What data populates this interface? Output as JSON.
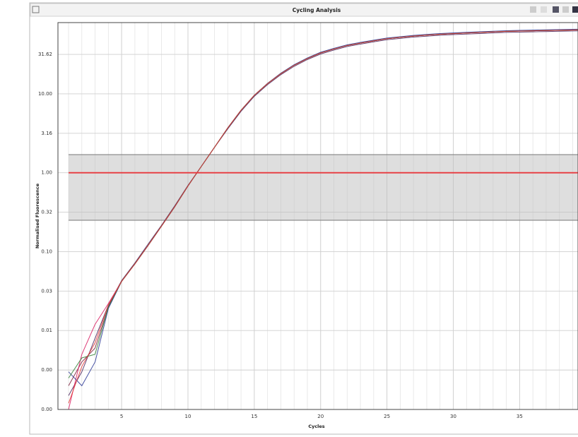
{
  "chart_data": {
    "type": "line",
    "title": "Cycling Analysis",
    "x_label": "Cycles",
    "y_label": "Normalised Fluorescence",
    "log_y": true,
    "grid": true,
    "x_minor_grid": true,
    "threshold": 1,
    "threshold_color": "#e8383d",
    "threshold_band": [
      0.25,
      1.7
    ],
    "xlim": [
      0.2,
      39.4
    ],
    "ylim": [
      0.001,
      80
    ],
    "xticks": [
      5,
      10,
      15,
      20,
      25,
      30,
      35
    ],
    "yticks": [
      31.62,
      {
        "value": 10,
        "label": "10.00"
      },
      {
        "value": 3.162,
        "label": "3.16"
      },
      {
        "value": 1,
        "label": "1.00"
      },
      {
        "value": 0.3162,
        "label": "0.32"
      },
      {
        "value": 0.1,
        "label": "0.10"
      },
      {
        "value": 0.03162,
        "label": "0.03"
      },
      {
        "value": 0.01,
        "label": "0.01"
      },
      {
        "value": 0.003162,
        "label": "0.00"
      },
      {
        "value": 0.001,
        "label": "0.00"
      }
    ],
    "x": [
      1,
      2,
      3,
      4,
      5,
      6,
      7,
      8,
      9,
      10,
      11,
      12,
      13,
      14,
      15,
      16,
      17,
      18,
      19,
      20,
      21,
      22,
      23,
      24,
      25,
      26,
      27,
      28,
      29,
      30,
      31,
      32,
      33,
      34,
      35,
      36,
      37,
      38,
      39,
      40
    ],
    "series": [
      {
        "color": "#7b1f3a",
        "values": [
          0.002,
          0.004,
          0.006,
          0.02,
          0.042,
          0.07,
          0.12,
          0.21,
          0.37,
          0.68,
          1.2,
          2.1,
          3.7,
          6.2,
          9.6,
          13.5,
          18,
          23,
          28,
          33,
          37,
          41,
          44,
          47,
          50,
          52,
          54,
          55.5,
          57,
          58,
          59,
          60,
          61,
          62,
          62.5,
          63,
          63.5,
          64,
          64.5,
          65
        ]
      },
      {
        "color": "#4a235a",
        "values": [
          0.0015,
          0.003,
          0.008,
          0.021,
          0.043,
          0.072,
          0.125,
          0.215,
          0.38,
          0.69,
          1.2,
          2.1,
          3.6,
          6.0,
          9.3,
          13.1,
          17.5,
          22.3,
          27.2,
          32,
          35.9,
          39.8,
          42.7,
          45.6,
          48.5,
          50.4,
          52.4,
          53.8,
          55.3,
          56.3,
          57.2,
          58.2,
          59.2,
          60.1,
          60.6,
          61.1,
          61.6,
          62.1,
          62.6,
          63
        ]
      },
      {
        "color": "#d81b60",
        "values": [
          0.001,
          0.005,
          0.012,
          0.022,
          0.042,
          0.07,
          0.12,
          0.21,
          0.37,
          0.68,
          1.2,
          2.1,
          3.7,
          6.2,
          9.6,
          13.5,
          18,
          23,
          28,
          33,
          37,
          41,
          44,
          47,
          50,
          52,
          54,
          55.5,
          57,
          58,
          59,
          60,
          61,
          62,
          62.5,
          63,
          63.5,
          64,
          64.5,
          65
        ]
      },
      {
        "color": "#283593",
        "values": [
          0.003,
          0.002,
          0.004,
          0.019,
          0.042,
          0.07,
          0.12,
          0.21,
          0.37,
          0.68,
          1.2,
          2.1,
          3.7,
          6.2,
          9.6,
          13.6,
          18.3,
          23.4,
          28.5,
          33.7,
          37.7,
          41.8,
          44.9,
          47.9,
          51,
          53,
          55.1,
          56.6,
          58.1,
          59.2,
          60.2,
          61.2,
          62.2,
          63.2,
          63.8,
          64.3,
          64.8,
          65.3,
          65.8,
          66.3
        ]
      },
      {
        "color": "#2e7d32",
        "values": [
          0.0025,
          0.0045,
          0.005,
          0.02,
          0.042,
          0.07,
          0.12,
          0.21,
          0.37,
          0.68,
          1.2,
          2.1,
          3.7,
          6.2,
          9.6,
          13.5,
          18,
          23,
          28,
          33,
          37,
          41,
          44,
          47,
          50,
          52,
          54,
          55.5,
          57,
          58,
          59,
          60,
          61,
          62,
          62.5,
          63,
          63.5,
          64,
          64.5,
          65
        ]
      },
      {
        "color": "#e53935",
        "values": [
          0.0012,
          0.0035,
          0.007,
          0.021,
          0.042,
          0.07,
          0.12,
          0.21,
          0.37,
          0.68,
          1.2,
          2.1,
          3.7,
          6.2,
          9.6,
          13.5,
          18,
          23,
          28,
          33,
          37,
          41,
          44,
          47,
          50,
          52,
          54,
          55.5,
          57,
          58,
          59,
          60,
          61,
          62,
          62.5,
          63,
          63.5,
          64,
          64.5,
          65
        ]
      }
    ]
  }
}
